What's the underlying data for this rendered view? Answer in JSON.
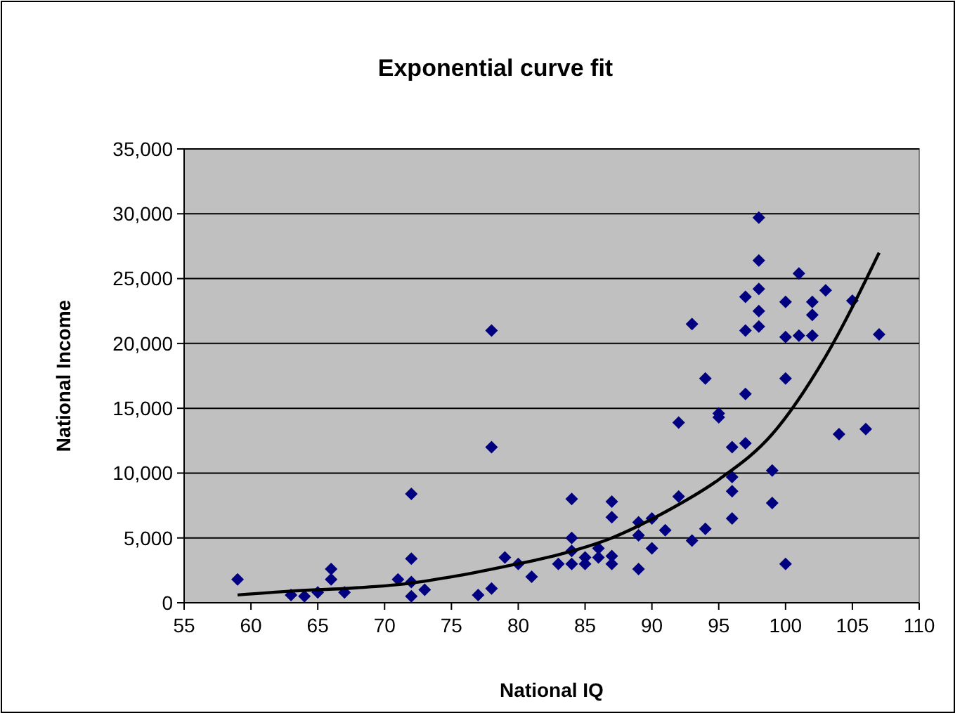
{
  "chart_data": {
    "type": "scatter",
    "title": "Exponential curve fit",
    "xlabel": "National IQ",
    "ylabel": "National Income",
    "xlim": [
      55,
      110
    ],
    "xticks": [
      55,
      60,
      65,
      70,
      75,
      80,
      85,
      90,
      95,
      100,
      105,
      110
    ],
    "ylim": [
      0,
      35000
    ],
    "yticks": [
      {
        "value": 0,
        "label": "0"
      },
      {
        "value": 5000,
        "label": "5,000"
      },
      {
        "value": 10000,
        "label": "10,000"
      },
      {
        "value": 15000,
        "label": "15,000"
      },
      {
        "value": 20000,
        "label": "20,000"
      },
      {
        "value": 25000,
        "label": "25,000"
      },
      {
        "value": 30000,
        "label": "30,000"
      },
      {
        "value": 35000,
        "label": "35,000"
      }
    ],
    "grid": "y",
    "series": [
      {
        "marker": "diamond",
        "color": "#000080",
        "x": [
          59,
          63,
          64,
          65,
          66,
          66,
          67,
          71,
          72,
          72,
          72,
          72,
          73,
          77,
          78,
          78,
          78,
          79,
          80,
          81,
          83,
          84,
          84,
          84,
          84,
          85,
          85,
          86,
          86,
          87,
          87,
          87,
          87,
          89,
          89,
          89,
          90,
          90,
          91,
          92,
          92,
          93,
          93,
          94,
          94,
          95,
          95,
          96,
          96,
          96,
          96,
          97,
          97,
          97,
          97,
          98,
          98,
          98,
          98,
          98,
          99,
          99,
          100,
          100,
          100,
          100,
          101,
          101,
          102,
          102,
          102,
          103,
          104,
          105,
          106,
          107
        ],
        "values": [
          1800,
          600,
          500,
          800,
          2600,
          1800,
          800,
          1800,
          3400,
          8400,
          1600,
          500,
          1000,
          600,
          1100,
          12000,
          21000,
          3500,
          3000,
          2000,
          3000,
          5000,
          8000,
          4000,
          3000,
          3500,
          3000,
          3500,
          4200,
          7800,
          6600,
          3600,
          3000,
          2600,
          5200,
          6200,
          6500,
          4200,
          5600,
          8200,
          13900,
          4800,
          21500,
          5700,
          17300,
          14600,
          14300,
          6500,
          8600,
          9700,
          12000,
          12300,
          16100,
          21000,
          23600,
          26400,
          24200,
          22500,
          21300,
          29700,
          10200,
          7700,
          20500,
          17300,
          23200,
          3000,
          25400,
          20600,
          23200,
          22200,
          20600,
          24100,
          13000,
          23300,
          13400,
          20700
        ]
      },
      {
        "type": "line",
        "marker": "none",
        "color": "#000000",
        "line_style": "solid",
        "x": [
          59,
          63,
          67,
          71,
          75,
          79,
          83,
          87,
          91,
          95,
          99,
          103,
          107
        ],
        "values": [
          600,
          900,
          1100,
          1400,
          2000,
          2800,
          3700,
          5000,
          7000,
          9500,
          13000,
          19000,
          27000
        ]
      }
    ]
  }
}
